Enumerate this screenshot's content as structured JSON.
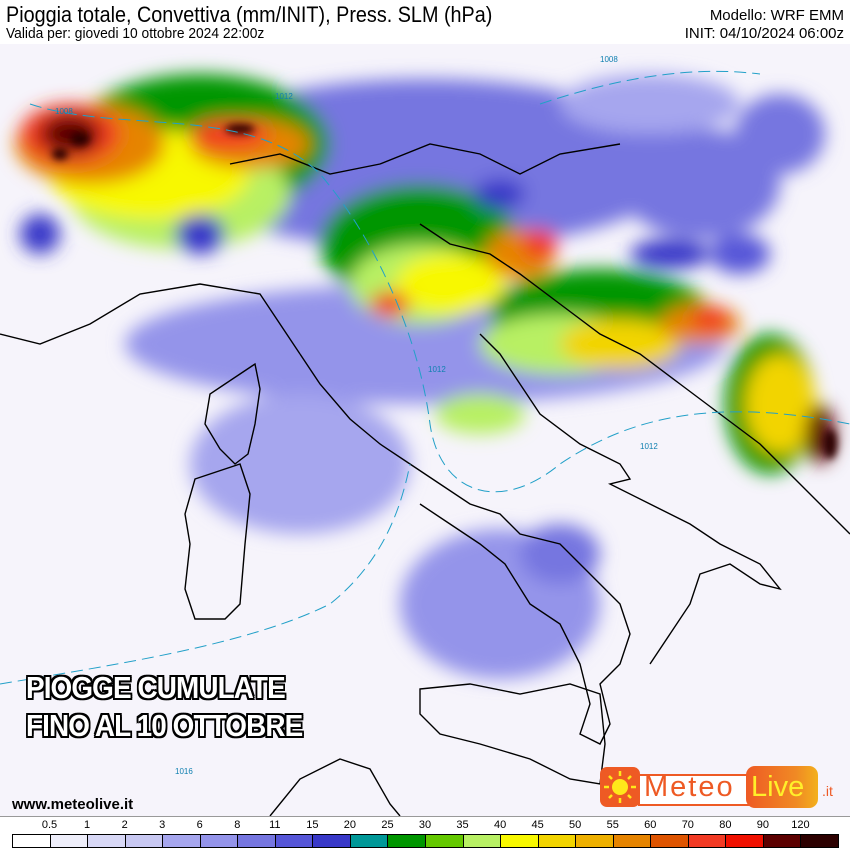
{
  "header": {
    "title": "Pioggia totale, Convettiva (mm/INIT), Press. SLM (hPa)",
    "valid": "Valida per: giovedi 10 ottobre 2024 22:00z",
    "model": "Modello: WRF EMM",
    "init": "INIT: 04/10/2024 06:00z"
  },
  "map": {
    "overlay_line1": "PIOGGE CUMULATE",
    "overlay_line2": "FINO AL 10 OTTOBRE",
    "isobar_labels": [
      "1008",
      "1008",
      "1012",
      "1012",
      "1012",
      "1016"
    ],
    "url": "www.meteolive.it"
  },
  "logo": {
    "meteo": "Meteo",
    "live": "Live",
    "tld": ".it",
    "sun_icon": "sun-icon"
  },
  "legend": {
    "labels": [
      "0.5",
      "1",
      "2",
      "3",
      "6",
      "8",
      "11",
      "15",
      "20",
      "25",
      "30",
      "35",
      "40",
      "45",
      "50",
      "55",
      "60",
      "70",
      "80",
      "90",
      "120"
    ],
    "colors": [
      "#ffffff",
      "#eeeefa",
      "#d8d8f6",
      "#c8c8f2",
      "#a6a6ee",
      "#9494ea",
      "#7676e0",
      "#5656d8",
      "#3838c8",
      "#009898",
      "#009600",
      "#64c800",
      "#b8f064",
      "#f8f800",
      "#f2d400",
      "#eeb000",
      "#e68400",
      "#de5400",
      "#f23a24",
      "#f01000",
      "#5c0000",
      "#2c0000"
    ]
  }
}
